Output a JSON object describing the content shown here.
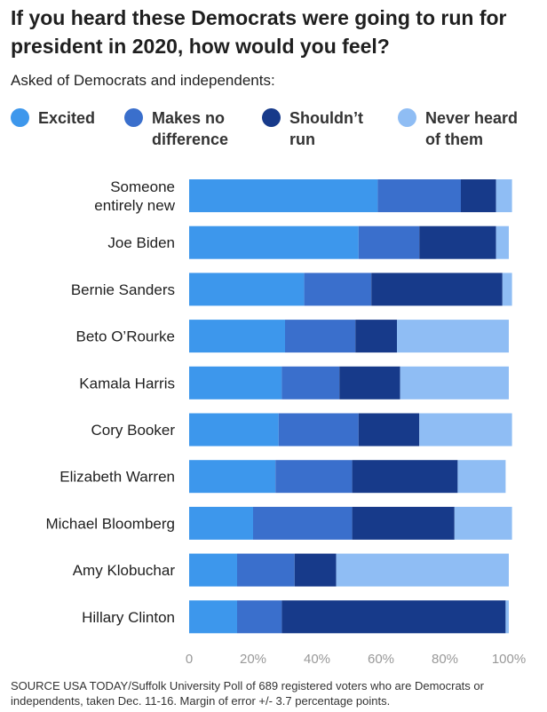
{
  "title": "If you heard these Democrats were going to run for president in 2020, how would you feel?",
  "subtitle": "Asked of Democrats and independents:",
  "colors": {
    "excited": "#3d97ec",
    "makes_no_difference": "#3a6fcc",
    "shouldnt_run": "#173a8a",
    "never_heard": "#8fbdf4"
  },
  "legend": [
    {
      "key": "excited",
      "label_line1": "Excited",
      "label_line2": ""
    },
    {
      "key": "makes_no_difference",
      "label_line1": "Makes no",
      "label_line2": "difference"
    },
    {
      "key": "shouldnt_run",
      "label_line1": "Shouldn’t",
      "label_line2": "run"
    },
    {
      "key": "never_heard",
      "label_line1": "Never heard",
      "label_line2": "of them"
    }
  ],
  "chart_data": {
    "type": "bar",
    "orientation": "horizontal",
    "stacked": true,
    "title": "If you heard these Democrats were going to run for president in 2020, how would you feel?",
    "subtitle": "Asked of Democrats and independents:",
    "categories": [
      [
        "Someone",
        "entirely new"
      ],
      [
        "Joe Biden"
      ],
      [
        "Bernie Sanders"
      ],
      [
        "Beto O’Rourke"
      ],
      [
        "Kamala Harris"
      ],
      [
        "Cory Booker"
      ],
      [
        "Elizabeth Warren"
      ],
      [
        "Michael Bloomberg"
      ],
      [
        "Amy Klobuchar"
      ],
      [
        "Hillary Clinton"
      ]
    ],
    "series": [
      {
        "name": "Excited",
        "key": "excited",
        "values": [
          59,
          53,
          36,
          30,
          29,
          28,
          27,
          20,
          15,
          15
        ]
      },
      {
        "name": "Makes no difference",
        "key": "makes_no_difference",
        "values": [
          26,
          19,
          21,
          22,
          18,
          25,
          24,
          31,
          18,
          14
        ]
      },
      {
        "name": "Shouldn’t run",
        "key": "shouldnt_run",
        "values": [
          11,
          24,
          41,
          13,
          19,
          19,
          33,
          32,
          13,
          70
        ]
      },
      {
        "name": "Never heard of them",
        "key": "never_heard",
        "values": [
          5,
          4,
          3,
          35,
          34,
          29,
          15,
          18,
          54,
          1
        ]
      }
    ],
    "xlim": [
      0,
      100
    ],
    "xticks": [
      "0",
      "20%",
      "40%",
      "60%",
      "80%",
      "100%"
    ],
    "xlabel": "",
    "ylabel": "",
    "grid": false,
    "legend_position": "top"
  },
  "source": "SOURCE USA TODAY/Suffolk University Poll of 689 registered voters who are Democrats or independents, taken Dec. 11-16. Margin of error +/- 3.7 percentage points."
}
